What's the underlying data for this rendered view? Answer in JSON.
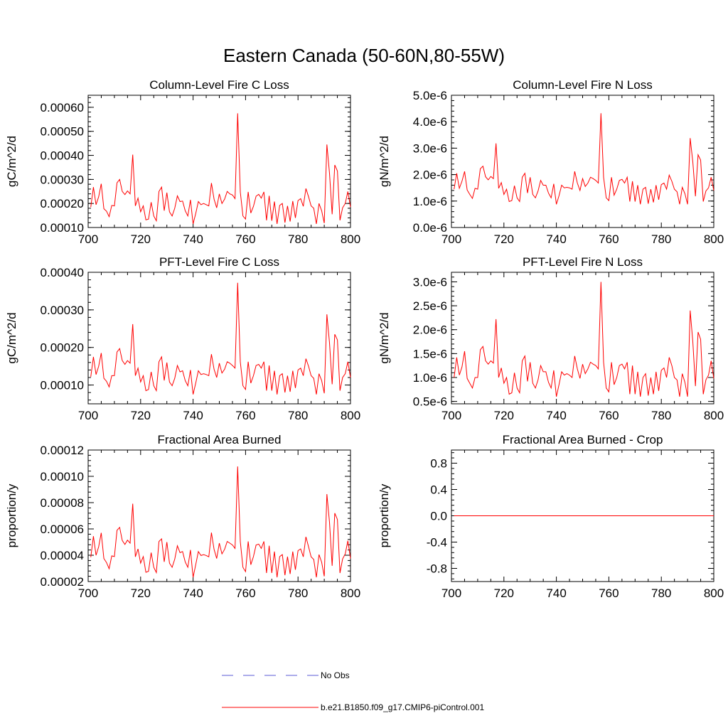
{
  "figure": {
    "title": "Eastern Canada (50-60N,80-55W)"
  },
  "legend": {
    "entries": [
      {
        "label": "No Obs",
        "style": "dashed",
        "color": "#5a5ad6"
      },
      {
        "label": "b.e21.B1850.f09_g17.CMIP6-piControl.001",
        "style": "solid",
        "color": "#ff0000"
      }
    ]
  },
  "colors": {
    "series": "#ff0000",
    "axis": "#000000",
    "obs": "#5a5ad6"
  },
  "chart_data": [
    {
      "type": "line",
      "title": "Column-Level Fire C Loss",
      "ylabel": "gC/m^2/d",
      "xlim": [
        700,
        800
      ],
      "ylim": [
        0.0001,
        0.00065
      ],
      "xticks": [
        "700",
        "720",
        "740",
        "760",
        "780",
        "800"
      ],
      "yticks": [
        {
          "v": 0.0001,
          "label": "0.00010"
        },
        {
          "v": 0.0002,
          "label": "0.00020"
        },
        {
          "v": 0.0003,
          "label": "0.00030"
        },
        {
          "v": 0.0004,
          "label": "0.00040"
        },
        {
          "v": 0.0005,
          "label": "0.00050"
        },
        {
          "v": 0.0006,
          "label": "0.00060"
        }
      ],
      "series": [
        {
          "name": "b.e21.B1850.f09_g17.CMIP6-piControl.001",
          "x_start": 701,
          "x_step": 1,
          "values": [
            0.000185,
            0.000268,
            0.000195,
            0.000228,
            0.000282,
            0.000178,
            0.000168,
            0.000145,
            0.000192,
            0.00019,
            0.000286,
            0.0003,
            0.00025,
            0.000237,
            0.000252,
            0.00024,
            0.000403,
            0.00019,
            0.000222,
            0.000165,
            0.00019,
            0.000132,
            0.000135,
            0.000205,
            0.000148,
            0.000128,
            0.00025,
            0.000268,
            0.00017,
            0.000245,
            0.000165,
            0.000148,
            0.00018,
            0.000232,
            0.000208,
            0.00021,
            0.00017,
            0.000148,
            0.000215,
            0.000115,
            0.000158,
            0.000208,
            0.000195,
            0.0002,
            0.000195,
            0.00019,
            0.000285,
            0.000218,
            0.000182,
            0.00024,
            0.0002,
            0.000218,
            0.00025,
            0.00024,
            0.000235,
            0.00022,
            0.000575,
            0.000248,
            0.000148,
            0.000135,
            0.000248,
            0.00016,
            0.000188,
            0.00023,
            0.000238,
            0.000222,
            0.000248,
            0.00013,
            0.000232,
            0.000128,
            0.000208,
            0.000115,
            0.000192,
            0.0002,
            0.00012,
            0.00019,
            0.000125,
            0.00021,
            0.00014,
            0.000212,
            0.00022,
            0.000188,
            0.000262,
            0.000228,
            0.00019,
            0.00018,
            0.000115,
            0.0002,
            0.00017,
            0.000118,
            0.000445,
            0.000325,
            0.000155,
            0.00036,
            0.000335,
            0.00013,
            0.000182,
            0.0002,
            0.00025,
            0.000185
          ]
        }
      ]
    },
    {
      "type": "line",
      "title": "Column-Level Fire N Loss",
      "ylabel": "gN/m^2/d",
      "xlim": [
        700,
        800
      ],
      "ylim": [
        0.0,
        5e-06
      ],
      "xticks": [
        "700",
        "720",
        "740",
        "760",
        "780",
        "800"
      ],
      "yticks": [
        {
          "v": 0.0,
          "label": "0.0e-6"
        },
        {
          "v": 1e-06,
          "label": "1.0e-6"
        },
        {
          "v": 2e-06,
          "label": "2.0e-6"
        },
        {
          "v": 3e-06,
          "label": "3.0e-6"
        },
        {
          "v": 4e-06,
          "label": "4.0e-6"
        },
        {
          "v": 5e-06,
          "label": "5.0e-6"
        }
      ],
      "series": [
        {
          "name": "b.e21.B1850.f09_g17.CMIP6-piControl.001",
          "x_start": 701,
          "x_step": 1,
          "values": [
            1.45e-06,
            2.05e-06,
            1.48e-06,
            1.75e-06,
            2.12e-06,
            1.42e-06,
            1.25e-06,
            1.1e-06,
            1.48e-06,
            1.45e-06,
            2.22e-06,
            2.32e-06,
            1.92e-06,
            1.8e-06,
            1.93e-06,
            1.85e-06,
            3.18e-06,
            1.48e-06,
            1.7e-06,
            1.25e-06,
            1.45e-06,
            9.8e-07,
            1.02e-06,
            1.58e-06,
            1.12e-06,
            9.8e-07,
            1.9e-06,
            2.05e-06,
            1.3e-06,
            1.9e-06,
            1.25e-06,
            1.12e-06,
            1.38e-06,
            1.78e-06,
            1.6e-06,
            1.6e-06,
            1.3e-06,
            1.12e-06,
            1.65e-06,
            8.8e-07,
            1.2e-06,
            1.6e-06,
            1.5e-06,
            1.52e-06,
            1.5e-06,
            1.45e-06,
            2.12e-06,
            1.68e-06,
            1.4e-06,
            1.85e-06,
            1.55e-06,
            1.68e-06,
            1.9e-06,
            1.85e-06,
            1.78e-06,
            1.68e-06,
            4.32e-06,
            1.9e-06,
            1.12e-06,
            1.02e-06,
            1.9e-06,
            1.22e-06,
            1.45e-06,
            1.78e-06,
            1.82e-06,
            1.68e-06,
            1.9e-06,
            9.8e-07,
            1.75e-06,
            9.8e-07,
            1.6e-06,
            8.8e-07,
            1.45e-06,
            1.52e-06,
            9e-07,
            1.45e-06,
            9.5e-07,
            1.6e-06,
            1.05e-06,
            1.62e-06,
            1.68e-06,
            1.45e-06,
            1.98e-06,
            1.75e-06,
            1.45e-06,
            1.35e-06,
            8.8e-07,
            1.52e-06,
            1.28e-06,
            8.8e-07,
            3.38e-06,
            2.48e-06,
            1.18e-06,
            2.75e-06,
            2.55e-06,
            9.8e-07,
            1.38e-06,
            1.5e-06,
            1.9e-06,
            1.4e-06
          ]
        }
      ]
    },
    {
      "type": "line",
      "title": "PFT-Level Fire C Loss",
      "ylabel": "gC/m^2/d",
      "xlim": [
        700,
        800
      ],
      "ylim": [
        5e-05,
        0.0004
      ],
      "xticks": [
        "700",
        "720",
        "740",
        "760",
        "780",
        "800"
      ],
      "yticks": [
        {
          "v": 0.0001,
          "label": "0.00010"
        },
        {
          "v": 0.0002,
          "label": "0.00020"
        },
        {
          "v": 0.0003,
          "label": "0.00030"
        },
        {
          "v": 0.0004,
          "label": "0.00040"
        }
      ],
      "series": [
        {
          "name": "b.e21.B1850.f09_g17.CMIP6-piControl.001",
          "x_start": 701,
          "x_step": 1,
          "values": [
            0.000122,
            0.000175,
            0.000128,
            0.00015,
            0.000185,
            0.000118,
            0.00011,
            9.5e-05,
            0.000125,
            0.000125,
            0.000188,
            0.000197,
            0.000165,
            0.000155,
            0.000165,
            0.000158,
            0.000262,
            0.000125,
            0.000145,
            0.000108,
            0.000125,
            8.5e-05,
            8.8e-05,
            0.000135,
            9.8e-05,
            8.5e-05,
            0.000162,
            0.000175,
            0.000112,
            0.00016,
            0.000108,
            9.8e-05,
            0.000118,
            0.000152,
            0.000135,
            0.000138,
            0.000112,
            9.8e-05,
            0.00014,
            7.5e-05,
            0.000105,
            0.000138,
            0.000128,
            0.00013,
            0.000128,
            0.000125,
            0.000182,
            0.000142,
            0.00012,
            0.000158,
            0.000132,
            0.000142,
            0.000162,
            0.000158,
            0.000152,
            0.000145,
            0.000372,
            0.000162,
            9.8e-05,
            8.8e-05,
            0.000162,
            0.000105,
            0.000125,
            0.000152,
            0.000155,
            0.000145,
            0.000162,
            8.5e-05,
            0.000152,
            8.5e-05,
            0.000138,
            7.5e-05,
            0.000125,
            0.00013,
            8e-05,
            0.000125,
            8.2e-05,
            0.000138,
            9.2e-05,
            0.00014,
            0.000145,
            0.000125,
            0.00017,
            0.00015,
            0.000125,
            0.000118,
            7.5e-05,
            0.00013,
            0.000112,
            7.8e-05,
            0.000288,
            0.000212,
            0.000102,
            0.000235,
            0.00022,
            8.5e-05,
            0.00012,
            0.00013,
            0.000162,
            0.00012
          ]
        }
      ]
    },
    {
      "type": "line",
      "title": "PFT-Level Fire N Loss",
      "ylabel": "gN/m^2/d",
      "xlim": [
        700,
        800
      ],
      "ylim": [
        4.5e-07,
        3.2e-06
      ],
      "xticks": [
        "700",
        "720",
        "740",
        "760",
        "780",
        "800"
      ],
      "yticks": [
        {
          "v": 5e-07,
          "label": "0.5e-6"
        },
        {
          "v": 1e-06,
          "label": "1.0e-6"
        },
        {
          "v": 1.5e-06,
          "label": "1.5e-6"
        },
        {
          "v": 2e-06,
          "label": "2.0e-6"
        },
        {
          "v": 2.5e-06,
          "label": "2.5e-6"
        },
        {
          "v": 3e-06,
          "label": "3.0e-6"
        }
      ],
      "series": [
        {
          "name": "b.e21.B1850.f09_g17.CMIP6-piControl.001",
          "x_start": 701,
          "x_step": 1,
          "values": [
            1e-06,
            1.42e-06,
            1.05e-06,
            1.22e-06,
            1.55e-06,
            9.8e-07,
            8.8e-07,
            7.8e-07,
            1e-06,
            1e-06,
            1.58e-06,
            1.65e-06,
            1.35e-06,
            1.28e-06,
            1.35e-06,
            1.3e-06,
            2.22e-06,
            1e-06,
            1.2e-06,
            8.8e-07,
            1e-06,
            6.5e-07,
            6.8e-07,
            1.1e-06,
            7.8e-07,
            6.8e-07,
            1.35e-06,
            1.45e-06,
            9.2e-07,
            1.32e-06,
            8.8e-07,
            7.8e-07,
            9.5e-07,
            1.25e-06,
            1.12e-06,
            1.12e-06,
            9e-07,
            7.8e-07,
            1.15e-06,
            6e-07,
            8.5e-07,
            1.12e-06,
            1.05e-06,
            1.08e-06,
            1.05e-06,
            1e-06,
            1.45e-06,
            1.18e-06,
            9.8e-07,
            1.28e-06,
            1.08e-06,
            1.18e-06,
            1.32e-06,
            1.28e-06,
            1.25e-06,
            1.18e-06,
            3e-06,
            1.32e-06,
            7.8e-07,
            7e-07,
            1.32e-06,
            8.5e-07,
            1e-06,
            1.25e-06,
            1.28e-06,
            1.18e-06,
            1.32e-06,
            6.5e-07,
            1.25e-06,
            6.5e-07,
            1.12e-06,
            6e-07,
            1e-06,
            1.08e-06,
            6.2e-07,
            1e-06,
            6.5e-07,
            1.12e-06,
            7.2e-07,
            1.15e-06,
            1.2e-06,
            1e-06,
            1.42e-06,
            1.25e-06,
            1e-06,
            9.5e-07,
            6e-07,
            1.08e-06,
            9e-07,
            6e-07,
            2.4e-06,
            1.75e-06,
            8.2e-07,
            1.95e-06,
            1.8e-06,
            6.5e-07,
            9.5e-07,
            1.05e-06,
            1.35e-06,
            9.8e-07
          ]
        }
      ]
    },
    {
      "type": "line",
      "title": "Fractional Area Burned",
      "ylabel": "proportion/y",
      "xlim": [
        700,
        800
      ],
      "ylim": [
        2e-05,
        0.00012
      ],
      "xticks": [
        "700",
        "720",
        "740",
        "760",
        "780",
        "800"
      ],
      "yticks": [
        {
          "v": 2e-05,
          "label": "0.00002"
        },
        {
          "v": 4e-05,
          "label": "0.00004"
        },
        {
          "v": 6e-05,
          "label": "0.00006"
        },
        {
          "v": 8e-05,
          "label": "0.00008"
        },
        {
          "v": 0.0001,
          "label": "0.00010"
        },
        {
          "v": 0.00012,
          "label": "0.00012"
        }
      ],
      "series": [
        {
          "name": "b.e21.B1850.f09_g17.CMIP6-piControl.001",
          "x_start": 701,
          "x_step": 1,
          "values": [
            3.85e-05,
            5.45e-05,
            4e-05,
            4.65e-05,
            5.7e-05,
            3.75e-05,
            3.45e-05,
            2.98e-05,
            3.95e-05,
            3.9e-05,
            5.9e-05,
            6.12e-05,
            5.12e-05,
            4.82e-05,
            5.15e-05,
            4.92e-05,
            7.92e-05,
            3.88e-05,
            4.48e-05,
            3.4e-05,
            3.9e-05,
            2.7e-05,
            2.78e-05,
            4.2e-05,
            3.08e-05,
            2.68e-05,
            5.05e-05,
            5.25e-05,
            3.5e-05,
            5e-05,
            3.4e-05,
            3.08e-05,
            3.7e-05,
            4.72e-05,
            4.2e-05,
            4.28e-05,
            3.5e-05,
            3.08e-05,
            4.4e-05,
            2.32e-05,
            3.28e-05,
            4.28e-05,
            3.98e-05,
            4.05e-05,
            3.98e-05,
            3.88e-05,
            5.72e-05,
            4.45e-05,
            3.75e-05,
            4.92e-05,
            4.1e-05,
            4.45e-05,
            5.05e-05,
            4.92e-05,
            4.78e-05,
            4.52e-05,
            0.0001075,
            5.05e-05,
            3.08e-05,
            2.75e-05,
            5.05e-05,
            3.28e-05,
            3.9e-05,
            4.78e-05,
            4.85e-05,
            4.52e-05,
            5.05e-05,
            2.65e-05,
            4.72e-05,
            2.65e-05,
            4.28e-05,
            2.32e-05,
            3.9e-05,
            4.05e-05,
            2.48e-05,
            3.9e-05,
            2.58e-05,
            4.28e-05,
            2.9e-05,
            4.35e-05,
            4.48e-05,
            3.88e-05,
            5.4e-05,
            4.65e-05,
            3.88e-05,
            3.68e-05,
            2.32e-05,
            4.05e-05,
            3.48e-05,
            2.4e-05,
            8.65e-05,
            6.5e-05,
            3.2e-05,
            7.2e-05,
            6.72e-05,
            2.65e-05,
            3.72e-05,
            4.1e-05,
            5.1e-05,
            3.75e-05
          ]
        }
      ]
    },
    {
      "type": "line",
      "title": "Fractional Area Burned - Crop",
      "ylabel": "proportion/y",
      "xlim": [
        700,
        800
      ],
      "ylim": [
        -1.0,
        1.0
      ],
      "xticks": [
        "700",
        "720",
        "740",
        "760",
        "780",
        "800"
      ],
      "yticks": [
        {
          "v": -0.8,
          "label": "-0.8"
        },
        {
          "v": -0.4,
          "label": "-0.4"
        },
        {
          "v": 0.0,
          "label": "0.0"
        },
        {
          "v": 0.4,
          "label": "0.4"
        },
        {
          "v": 0.8,
          "label": "0.8"
        }
      ],
      "series": [
        {
          "name": "b.e21.B1850.f09_g17.CMIP6-piControl.001",
          "x_start": 701,
          "x_step": 1,
          "constant": 0.0,
          "count": 100
        }
      ]
    }
  ]
}
